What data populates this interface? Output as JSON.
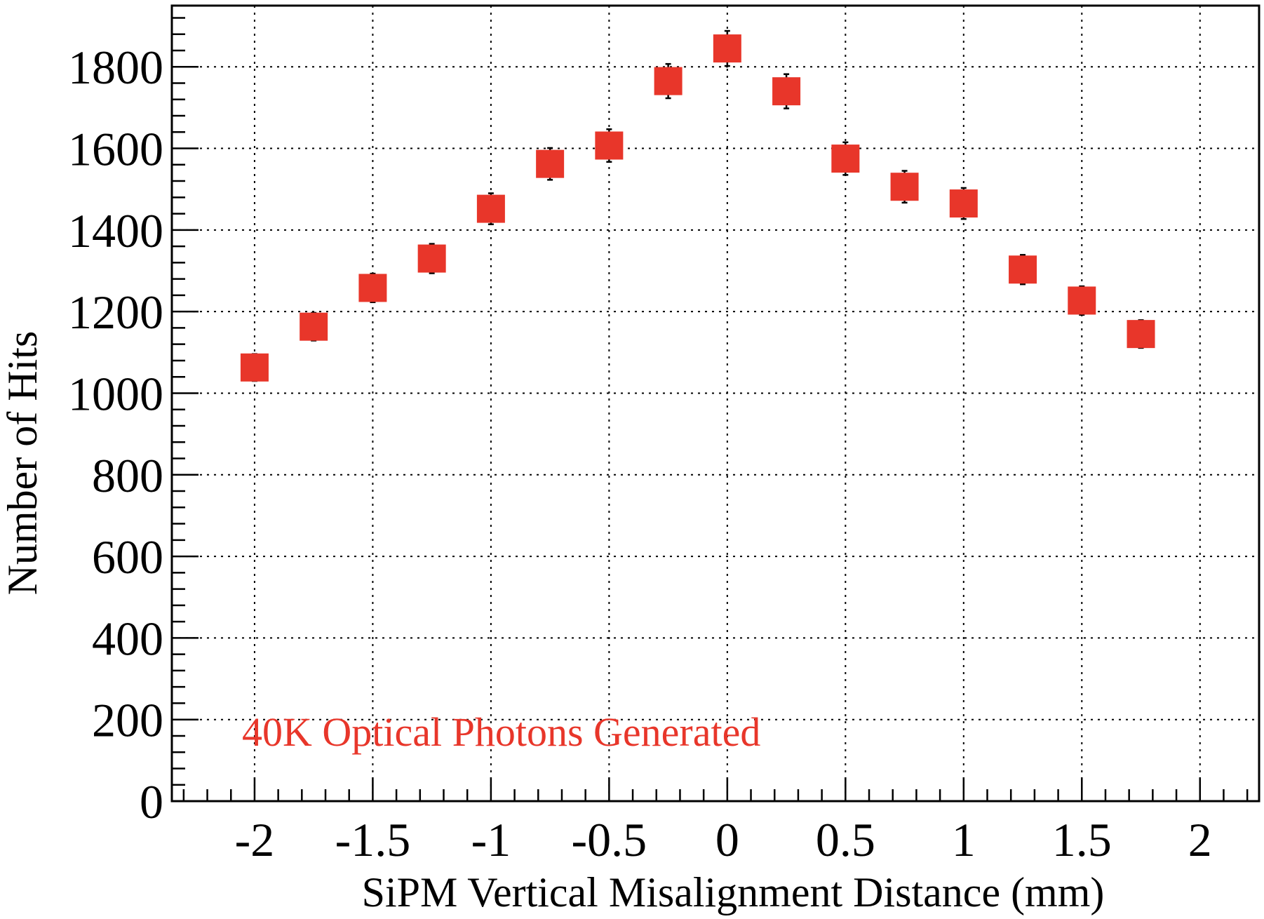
{
  "chart_data": {
    "type": "scatter",
    "title": "",
    "xlabel": "SiPM Vertical Misalignment Distance (mm)",
    "ylabel": "Number of Hits",
    "xlim": [
      -2.35,
      2.25
    ],
    "ylim": [
      0,
      1950
    ],
    "x_ticks": [
      -2,
      -1.5,
      -1,
      -0.5,
      0,
      0.5,
      1,
      1.5,
      2
    ],
    "x_tick_labels": [
      "-2",
      "-1.5",
      "-1",
      "-0.5",
      "0",
      "0.5",
      "1",
      "1.5",
      "2"
    ],
    "y_ticks": [
      0,
      200,
      400,
      600,
      800,
      1000,
      1200,
      1400,
      1600,
      1800
    ],
    "y_tick_labels": [
      "0",
      "200",
      "400",
      "600",
      "800",
      "1000",
      "1200",
      "1400",
      "1600",
      "1800"
    ],
    "grid": true,
    "marker_color": "#e8362a",
    "annotation": {
      "text": "40K Optical Photons Generated",
      "color": "#e8362a"
    },
    "series": [
      {
        "x": [
          -2,
          -1.75,
          -1.5,
          -1.25,
          -1,
          -0.75,
          -0.5,
          -0.25,
          0,
          0.25,
          0.5,
          0.75,
          1,
          1.25,
          1.5,
          1.75
        ],
        "y": [
          1063,
          1163,
          1258,
          1330,
          1452,
          1562,
          1607,
          1765,
          1845,
          1740,
          1575,
          1506,
          1465,
          1303,
          1227,
          1145
        ],
        "yerr": [
          33,
          34,
          35,
          36,
          38,
          39,
          40,
          42,
          43,
          42,
          40,
          39,
          38,
          36,
          35,
          34
        ]
      }
    ]
  }
}
